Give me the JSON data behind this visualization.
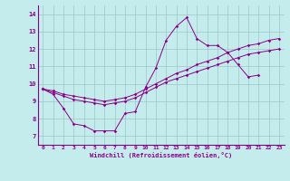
{
  "xlabel": "Windchill (Refroidissement éolien,°C)",
  "bg_color": "#c4ecec",
  "line_color": "#8b008b",
  "grid_color": "#9dc8c8",
  "xlim": [
    -0.5,
    23.5
  ],
  "ylim": [
    6.5,
    14.5
  ],
  "xticks": [
    0,
    1,
    2,
    3,
    4,
    5,
    6,
    7,
    8,
    9,
    10,
    11,
    12,
    13,
    14,
    15,
    16,
    17,
    18,
    19,
    20,
    21,
    22,
    23
  ],
  "yticks": [
    7,
    8,
    9,
    10,
    11,
    12,
    13,
    14
  ],
  "series1_x": [
    0,
    1,
    2,
    3,
    4,
    5,
    6,
    7,
    8,
    9,
    10,
    11,
    12,
    13,
    14,
    15,
    16,
    17,
    18,
    19,
    20,
    21,
    22,
    23
  ],
  "series1_y": [
    9.7,
    9.4,
    8.6,
    7.7,
    7.6,
    7.3,
    7.3,
    7.3,
    8.3,
    8.4,
    9.8,
    10.9,
    12.5,
    13.3,
    13.8,
    12.6,
    12.2,
    12.2,
    11.8,
    11.1,
    10.4,
    10.5,
    null,
    null
  ],
  "series2_x": [
    0,
    1,
    2,
    3,
    4,
    5,
    6,
    7,
    8,
    9,
    10,
    11,
    12,
    13,
    14,
    15,
    16,
    17,
    18,
    19,
    20,
    21,
    22,
    23
  ],
  "series2_y": [
    9.7,
    9.5,
    9.3,
    9.1,
    9.0,
    8.9,
    8.8,
    8.9,
    9.0,
    9.2,
    9.5,
    9.8,
    10.1,
    10.3,
    10.5,
    10.7,
    10.9,
    11.1,
    11.3,
    11.5,
    11.7,
    11.8,
    11.9,
    12.0
  ],
  "series3_x": [
    0,
    1,
    2,
    3,
    4,
    5,
    6,
    7,
    8,
    9,
    10,
    11,
    12,
    13,
    14,
    15,
    16,
    17,
    18,
    19,
    20,
    21,
    22,
    23
  ],
  "series3_y": [
    9.7,
    9.6,
    9.4,
    9.3,
    9.2,
    9.1,
    9.0,
    9.1,
    9.2,
    9.4,
    9.7,
    10.0,
    10.3,
    10.6,
    10.8,
    11.1,
    11.3,
    11.5,
    11.8,
    12.0,
    12.2,
    12.3,
    12.5,
    12.6
  ]
}
